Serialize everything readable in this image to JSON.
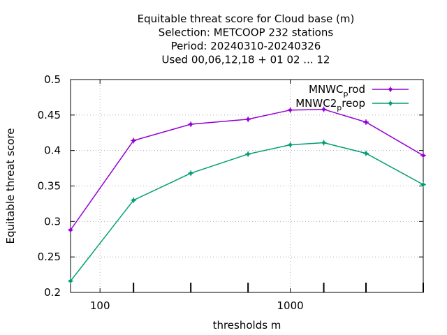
{
  "chart_data": {
    "type": "line",
    "title_lines": [
      "Equitable threat score  for Cloud base (m)",
      "Selection: METCOOP    232 stations",
      "Period: 20240310-20240326",
      "Used  00,06,12,18 + 01 02 ... 12"
    ],
    "xlabel": "thresholds m",
    "ylabel": "Equitable threat score",
    "x_scale": "log",
    "xlim": [
      70,
      5000
    ],
    "ylim": [
      0.2,
      0.5
    ],
    "x_ticks": [
      100,
      1000
    ],
    "x_tick_labels": [
      "100",
      "1000"
    ],
    "x_minor_ticks": [
      150,
      300,
      600,
      1500,
      2500,
      5000
    ],
    "y_ticks": [
      0.2,
      0.25,
      0.3,
      0.35,
      0.4,
      0.45,
      0.5
    ],
    "y_tick_labels": [
      "0.2",
      "0.25",
      "0.3",
      "0.35",
      "0.4",
      "0.45",
      "0.5"
    ],
    "grid": true,
    "legend_position": "top-right",
    "x": [
      70,
      150,
      300,
      600,
      1000,
      1500,
      2500,
      5000
    ],
    "series": [
      {
        "name_main": "MNWC",
        "name_sub": "p",
        "name_rest": "rod",
        "color": "#9400d3",
        "values": [
          0.288,
          0.414,
          0.437,
          0.444,
          0.457,
          0.458,
          0.44,
          0.393
        ]
      },
      {
        "name_main": "MNWC2",
        "name_sub": "p",
        "name_rest": "reop",
        "color": "#009e73",
        "values": [
          0.216,
          0.33,
          0.368,
          0.395,
          0.408,
          0.411,
          0.396,
          0.352
        ]
      }
    ]
  }
}
